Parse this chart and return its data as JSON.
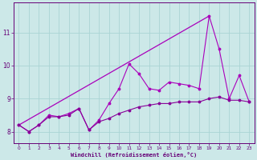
{
  "x": [
    0,
    1,
    2,
    3,
    4,
    5,
    6,
    7,
    8,
    9,
    10,
    11,
    12,
    13,
    14,
    15,
    16,
    17,
    18,
    19,
    20,
    21,
    22,
    23
  ],
  "line_wavy": [
    8.2,
    8.0,
    8.2,
    8.5,
    8.45,
    8.55,
    8.7,
    8.05,
    8.35,
    8.85,
    9.3,
    10.05,
    9.75,
    9.3,
    9.25,
    9.5,
    9.45,
    9.4,
    9.3,
    11.5,
    10.5,
    9.0,
    9.7,
    8.9
  ],
  "line_lower_wavy": [
    8.2,
    8.0,
    8.2,
    8.45,
    8.45,
    8.5,
    8.7,
    8.05,
    8.3,
    8.4,
    8.55,
    8.65,
    8.75,
    8.8,
    8.85,
    8.85,
    8.9,
    8.9,
    8.9,
    9.0,
    9.05,
    8.95,
    8.95,
    8.9
  ],
  "straight_line_x": [
    0,
    19
  ],
  "straight_line_y": [
    8.2,
    11.5
  ],
  "line_color_main": "#aa00bb",
  "line_color_lower": "#880099",
  "bg_color": "#cce8e8",
  "grid_color": "#aad4d4",
  "axis_color": "#660077",
  "xlabel": "Windchill (Refroidissement éolien,°C)",
  "yticks": [
    8,
    9,
    10,
    11
  ],
  "xticks": [
    0,
    1,
    2,
    3,
    4,
    5,
    6,
    7,
    8,
    9,
    10,
    11,
    12,
    13,
    14,
    15,
    16,
    17,
    18,
    19,
    20,
    21,
    22,
    23
  ],
  "ylim": [
    7.65,
    11.9
  ],
  "xlim": [
    -0.5,
    23.5
  ]
}
